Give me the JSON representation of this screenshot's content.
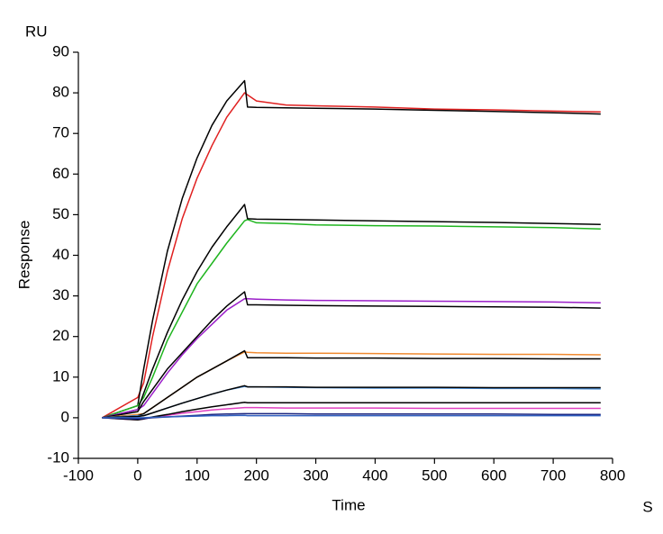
{
  "chart_data": {
    "type": "line",
    "y_unit": "RU",
    "ylabel": "Response",
    "xlabel": "Time",
    "x_unit": "S",
    "xlim": [
      -100,
      800
    ],
    "xticks": [
      -100,
      0,
      100,
      200,
      300,
      400,
      500,
      600,
      700,
      800
    ],
    "ylim": [
      -10,
      90
    ],
    "yticks": [
      -10,
      0,
      10,
      20,
      30,
      40,
      50,
      60,
      70,
      80,
      90
    ],
    "x": [
      -60,
      0,
      10,
      25,
      50,
      75,
      100,
      125,
      150,
      180,
      185,
      200,
      250,
      300,
      400,
      500,
      600,
      700,
      780
    ],
    "series": [
      {
        "color": "#e02020",
        "values": [
          0,
          5,
          8.6,
          20,
          36,
          49,
          59,
          67,
          74,
          80,
          79.5,
          78,
          77,
          76.8,
          76.5,
          76,
          75.8,
          75.5,
          75.3
        ]
      },
      {
        "color": "#000000",
        "values": [
          0,
          3,
          12,
          24,
          41,
          54,
          64,
          72,
          78,
          83,
          76.5,
          76.4,
          76.3,
          76.2,
          76,
          75.7,
          75.4,
          75.1,
          74.8
        ]
      },
      {
        "color": "#1fb51f",
        "values": [
          0,
          3,
          5,
          10,
          19,
          26,
          33,
          38,
          43,
          48.5,
          48.8,
          48,
          47.8,
          47.5,
          47.3,
          47.2,
          47,
          46.8,
          46.5
        ]
      },
      {
        "color": "#000000",
        "values": [
          0,
          2,
          6,
          12,
          21,
          29,
          36,
          42,
          47,
          52.5,
          49,
          48.9,
          48.8,
          48.7,
          48.5,
          48.3,
          48.1,
          47.8,
          47.6
        ]
      },
      {
        "color": "#9b1fc9",
        "values": [
          0,
          2,
          3,
          6,
          11,
          15.5,
          19.5,
          23,
          26.5,
          29.3,
          29.3,
          29.2,
          29,
          28.9,
          28.8,
          28.7,
          28.6,
          28.5,
          28.3
        ]
      },
      {
        "color": "#000000",
        "values": [
          0,
          1.5,
          4,
          7,
          12,
          16,
          20,
          24,
          27.5,
          31,
          27.8,
          27.8,
          27.7,
          27.6,
          27.5,
          27.4,
          27.3,
          27.2,
          27
        ]
      },
      {
        "color": "#f08a30",
        "values": [
          0,
          0.8,
          1,
          2.5,
          5,
          7.5,
          10,
          12,
          14,
          16.2,
          16.1,
          16,
          15.9,
          15.9,
          15.8,
          15.7,
          15.6,
          15.6,
          15.5
        ]
      },
      {
        "color": "#000000",
        "values": [
          0,
          0.5,
          1,
          2.5,
          5,
          7.5,
          10,
          12,
          14,
          16.5,
          14.8,
          14.8,
          14.8,
          14.7,
          14.7,
          14.6,
          14.6,
          14.5,
          14.5
        ]
      },
      {
        "color": "#4a90d9",
        "values": [
          0,
          0.5,
          0.5,
          1.2,
          2.4,
          3.6,
          4.7,
          5.8,
          6.8,
          7.7,
          7.6,
          7.6,
          7.5,
          7.4,
          7.3,
          7.3,
          7.2,
          7.2,
          7.1
        ]
      },
      {
        "color": "#000000",
        "values": [
          0,
          0.3,
          0.5,
          1.2,
          2.4,
          3.6,
          4.7,
          5.8,
          6.8,
          7.9,
          7.6,
          7.6,
          7.6,
          7.5,
          7.5,
          7.5,
          7.4,
          7.4,
          7.4
        ]
      },
      {
        "color": "#e040c0",
        "values": [
          0,
          -0.5,
          -0.3,
          0.1,
          0.6,
          1.1,
          1.5,
          1.9,
          2.2,
          2.5,
          2.5,
          2.5,
          2.4,
          2.4,
          2.4,
          2.3,
          2.3,
          2.3,
          2.3
        ]
      },
      {
        "color": "#000000",
        "values": [
          0,
          -0.5,
          -0.3,
          0.2,
          0.8,
          1.5,
          2.1,
          2.7,
          3.2,
          3.8,
          3.7,
          3.7,
          3.7,
          3.7,
          3.7,
          3.7,
          3.7,
          3.7,
          3.7
        ]
      },
      {
        "color": "#1a237e",
        "values": [
          0,
          -0.3,
          -0.2,
          0,
          0.2,
          0.4,
          0.6,
          0.8,
          0.9,
          1,
          1,
          1,
          1,
          0.9,
          0.9,
          0.9,
          0.9,
          0.8,
          0.8
        ]
      },
      {
        "color": "#3060c0",
        "values": [
          0,
          0,
          0,
          0.1,
          0.2,
          0.3,
          0.4,
          0.5,
          0.5,
          0.6,
          0.5,
          0.5,
          0.5,
          0.5,
          0.5,
          0.5,
          0.5,
          0.5,
          0.5
        ]
      }
    ]
  }
}
